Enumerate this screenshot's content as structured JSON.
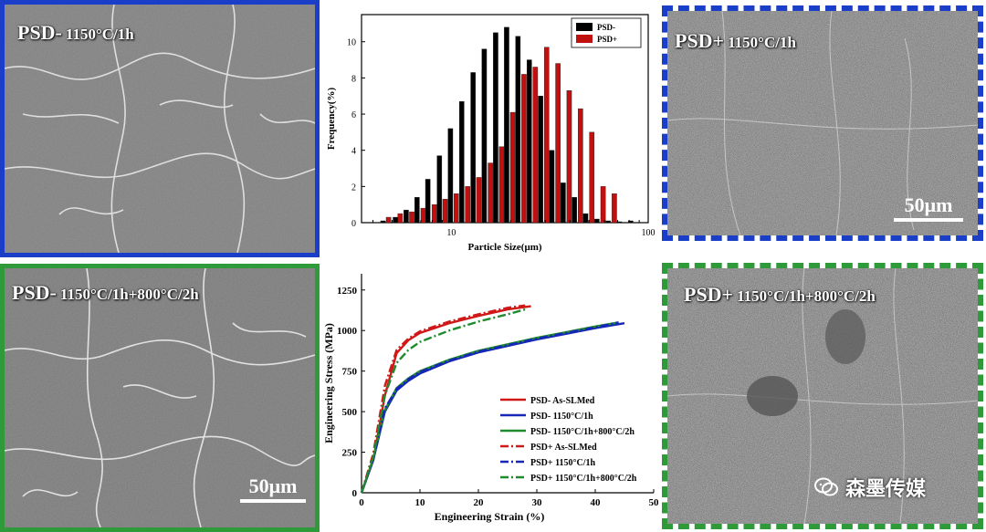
{
  "panels": {
    "top_left": {
      "label_main": "PSD-",
      "label_sub": "1150°C/1h",
      "border_color": "#1a3ec8"
    },
    "top_right": {
      "label_main": "PSD+",
      "label_sub": "1150°C/1h",
      "border_color": "#1a3ec8",
      "scale_bar": "50μm"
    },
    "bottom_left": {
      "label_main": "PSD-",
      "label_sub": "1150°C/1h+800°C/2h",
      "border_color": "#2e9a3a",
      "scale_bar": "50μm"
    },
    "bottom_right": {
      "label_main": "PSD+",
      "label_sub": "1150°C/1h+800°C/2h",
      "border_color": "#2e9a3a"
    }
  },
  "watermark": {
    "text": "森墨传媒"
  },
  "chart_data": [
    {
      "type": "bar",
      "xlabel": "Particle Size(μm)",
      "ylabel": "Frequency(%)",
      "xscale": "log",
      "xlim": [
        3.5,
        100
      ],
      "ylim": [
        0,
        11.5
      ],
      "xticks": [
        "10",
        "100"
      ],
      "yticks": [
        "0",
        "2",
        "4",
        "6",
        "8",
        "10"
      ],
      "legend_position": "top-right",
      "series": [
        {
          "name": "PSD-",
          "color": "#000000",
          "x": [
            4.5,
            5.2,
            5.9,
            6.7,
            7.6,
            8.7,
            9.9,
            11.3,
            12.9,
            14.7,
            16.8,
            19.1,
            21.8,
            24.9,
            28.4,
            32.4,
            37.0,
            42.2,
            48.1,
            54.9,
            62.6,
            71.4,
            81.5
          ],
          "values": [
            0.1,
            0.3,
            0.7,
            1.4,
            2.4,
            3.7,
            5.2,
            6.7,
            8.3,
            9.6,
            10.5,
            10.8,
            10.3,
            9.0,
            7.0,
            4.0,
            2.2,
            1.4,
            0.5,
            0.2,
            0.1,
            0.05,
            0.1
          ]
        },
        {
          "name": "PSD+",
          "color": "#c01010",
          "x": [
            4.8,
            5.5,
            6.3,
            7.2,
            8.2,
            9.3,
            10.6,
            12.1,
            13.8,
            15.8,
            18.0,
            20.5,
            23.4,
            26.7,
            30.5,
            34.8,
            39.7,
            45.3,
            51.7,
            59.0,
            67.3
          ],
          "values": [
            0.3,
            0.5,
            0.6,
            0.8,
            1.0,
            1.3,
            1.6,
            2.0,
            2.5,
            3.3,
            4.2,
            6.1,
            8.2,
            8.6,
            9.7,
            8.8,
            7.3,
            6.3,
            5.0,
            2.0,
            1.6
          ]
        }
      ]
    },
    {
      "type": "line",
      "xlabel": "Engineering Strain (%)",
      "ylabel": "Engineering Stress (MPa)",
      "xlim": [
        0,
        50
      ],
      "ylim": [
        0,
        1350
      ],
      "xticks": [
        "0",
        "10",
        "20",
        "30",
        "40",
        "50"
      ],
      "yticks": [
        "0",
        "250",
        "500",
        "750",
        "1000",
        "1250"
      ],
      "legend_position": "bottom-right",
      "series": [
        {
          "name": "PSD- As-SLMed",
          "color": "#d01818",
          "dash": "solid",
          "points": [
            [
              0,
              0
            ],
            [
              2,
              200
            ],
            [
              4,
              600
            ],
            [
              6,
              860
            ],
            [
              8,
              940
            ],
            [
              10,
              985
            ],
            [
              15,
              1045
            ],
            [
              20,
              1090
            ],
            [
              25,
              1130
            ],
            [
              29,
              1150
            ]
          ]
        },
        {
          "name": "PSD- 1150°C/1h",
          "color": "#1626b8",
          "dash": "solid",
          "points": [
            [
              0,
              0
            ],
            [
              2,
              200
            ],
            [
              4,
              500
            ],
            [
              6,
              630
            ],
            [
              8,
              690
            ],
            [
              10,
              735
            ],
            [
              15,
              810
            ],
            [
              20,
              865
            ],
            [
              25,
              905
            ],
            [
              30,
              945
            ],
            [
              35,
              980
            ],
            [
              40,
              1015
            ],
            [
              45,
              1045
            ]
          ]
        },
        {
          "name": "PSD- 1150°C/1h+800°C/2h",
          "color": "#1f8a2e",
          "dash": "solid",
          "points": [
            [
              0,
              0
            ],
            [
              2,
              210
            ],
            [
              4,
              510
            ],
            [
              6,
              645
            ],
            [
              8,
              705
            ],
            [
              10,
              750
            ],
            [
              15,
              820
            ],
            [
              20,
              875
            ],
            [
              25,
              915
            ],
            [
              30,
              955
            ],
            [
              35,
              990
            ],
            [
              40,
              1025
            ],
            [
              44,
              1050
            ]
          ]
        },
        {
          "name": "PSD+ As-SLMed",
          "color": "#d01818",
          "dash": "dashdot",
          "points": [
            [
              0,
              0
            ],
            [
              2,
              240
            ],
            [
              4,
              660
            ],
            [
              6,
              880
            ],
            [
              8,
              950
            ],
            [
              10,
              995
            ],
            [
              15,
              1055
            ],
            [
              20,
              1100
            ],
            [
              25,
              1140
            ],
            [
              28,
              1155
            ]
          ]
        },
        {
          "name": "PSD+ 1150°C/1h",
          "color": "#1626b8",
          "dash": "dashdot",
          "points": [
            [
              0,
              0
            ],
            [
              2,
              210
            ],
            [
              4,
              520
            ],
            [
              6,
              640
            ],
            [
              8,
              700
            ],
            [
              10,
              745
            ],
            [
              15,
              815
            ],
            [
              20,
              870
            ],
            [
              25,
              910
            ],
            [
              30,
              950
            ],
            [
              35,
              985
            ],
            [
              40,
              1020
            ],
            [
              44,
              1050
            ]
          ]
        },
        {
          "name": "PSD+ 1150°C/1h+800°C/2h",
          "color": "#1f8a2e",
          "dash": "dashdot",
          "points": [
            [
              0,
              0
            ],
            [
              2,
              220
            ],
            [
              4,
              600
            ],
            [
              6,
              800
            ],
            [
              8,
              880
            ],
            [
              10,
              930
            ],
            [
              15,
              1000
            ],
            [
              20,
              1055
            ],
            [
              25,
              1100
            ],
            [
              28,
              1130
            ]
          ]
        }
      ]
    }
  ]
}
